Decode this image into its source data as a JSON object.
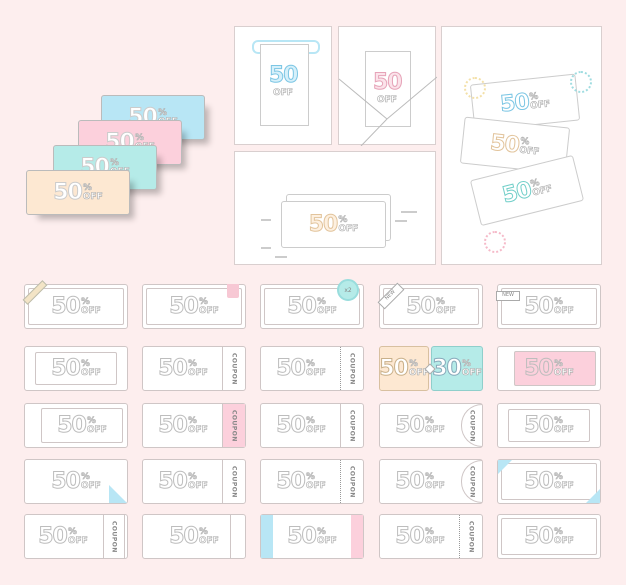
{
  "deal": {
    "amount": "50",
    "percent": "%",
    "off": "OFF",
    "coupon": "COUPON",
    "new": "NEW",
    "multiplier": "x2",
    "second_amount": "30"
  },
  "colors": {
    "background": "#fdeeee",
    "blue": "#b8e6f5",
    "pink": "#fcd0dc",
    "teal": "#b5ebe8",
    "peach": "#fde8d2",
    "outline": "#cfc6c6"
  },
  "stack_colors": [
    "blue",
    "pink",
    "teal",
    "peach"
  ],
  "coupons": [
    {
      "variant": "ribbon-corner"
    },
    {
      "variant": "alarm-tag"
    },
    {
      "variant": "x2-badge"
    },
    {
      "variant": "new-corner"
    },
    {
      "variant": "new-flag"
    },
    {
      "variant": "inner-frame"
    },
    {
      "variant": "coupon-stub"
    },
    {
      "variant": "coupon-stub-dotted"
    },
    {
      "variant": "split-50-30"
    },
    {
      "variant": "pink-fill"
    },
    {
      "variant": "inner-frame-right"
    },
    {
      "variant": "coupon-stub-pink"
    },
    {
      "variant": "coupon-stub"
    },
    {
      "variant": "coupon-semicircle"
    },
    {
      "variant": "inner-frame"
    },
    {
      "variant": "folded-corner"
    },
    {
      "variant": "coupon-stub"
    },
    {
      "variant": "coupon-stub-dotted"
    },
    {
      "variant": "coupon-semicircle-dotted"
    },
    {
      "variant": "blue-corners"
    },
    {
      "variant": "coupon-stub-left"
    },
    {
      "variant": "plain-notch"
    },
    {
      "variant": "blue-pink-ends"
    },
    {
      "variant": "coupon-stub-dotted"
    },
    {
      "variant": "corner-lines"
    }
  ]
}
